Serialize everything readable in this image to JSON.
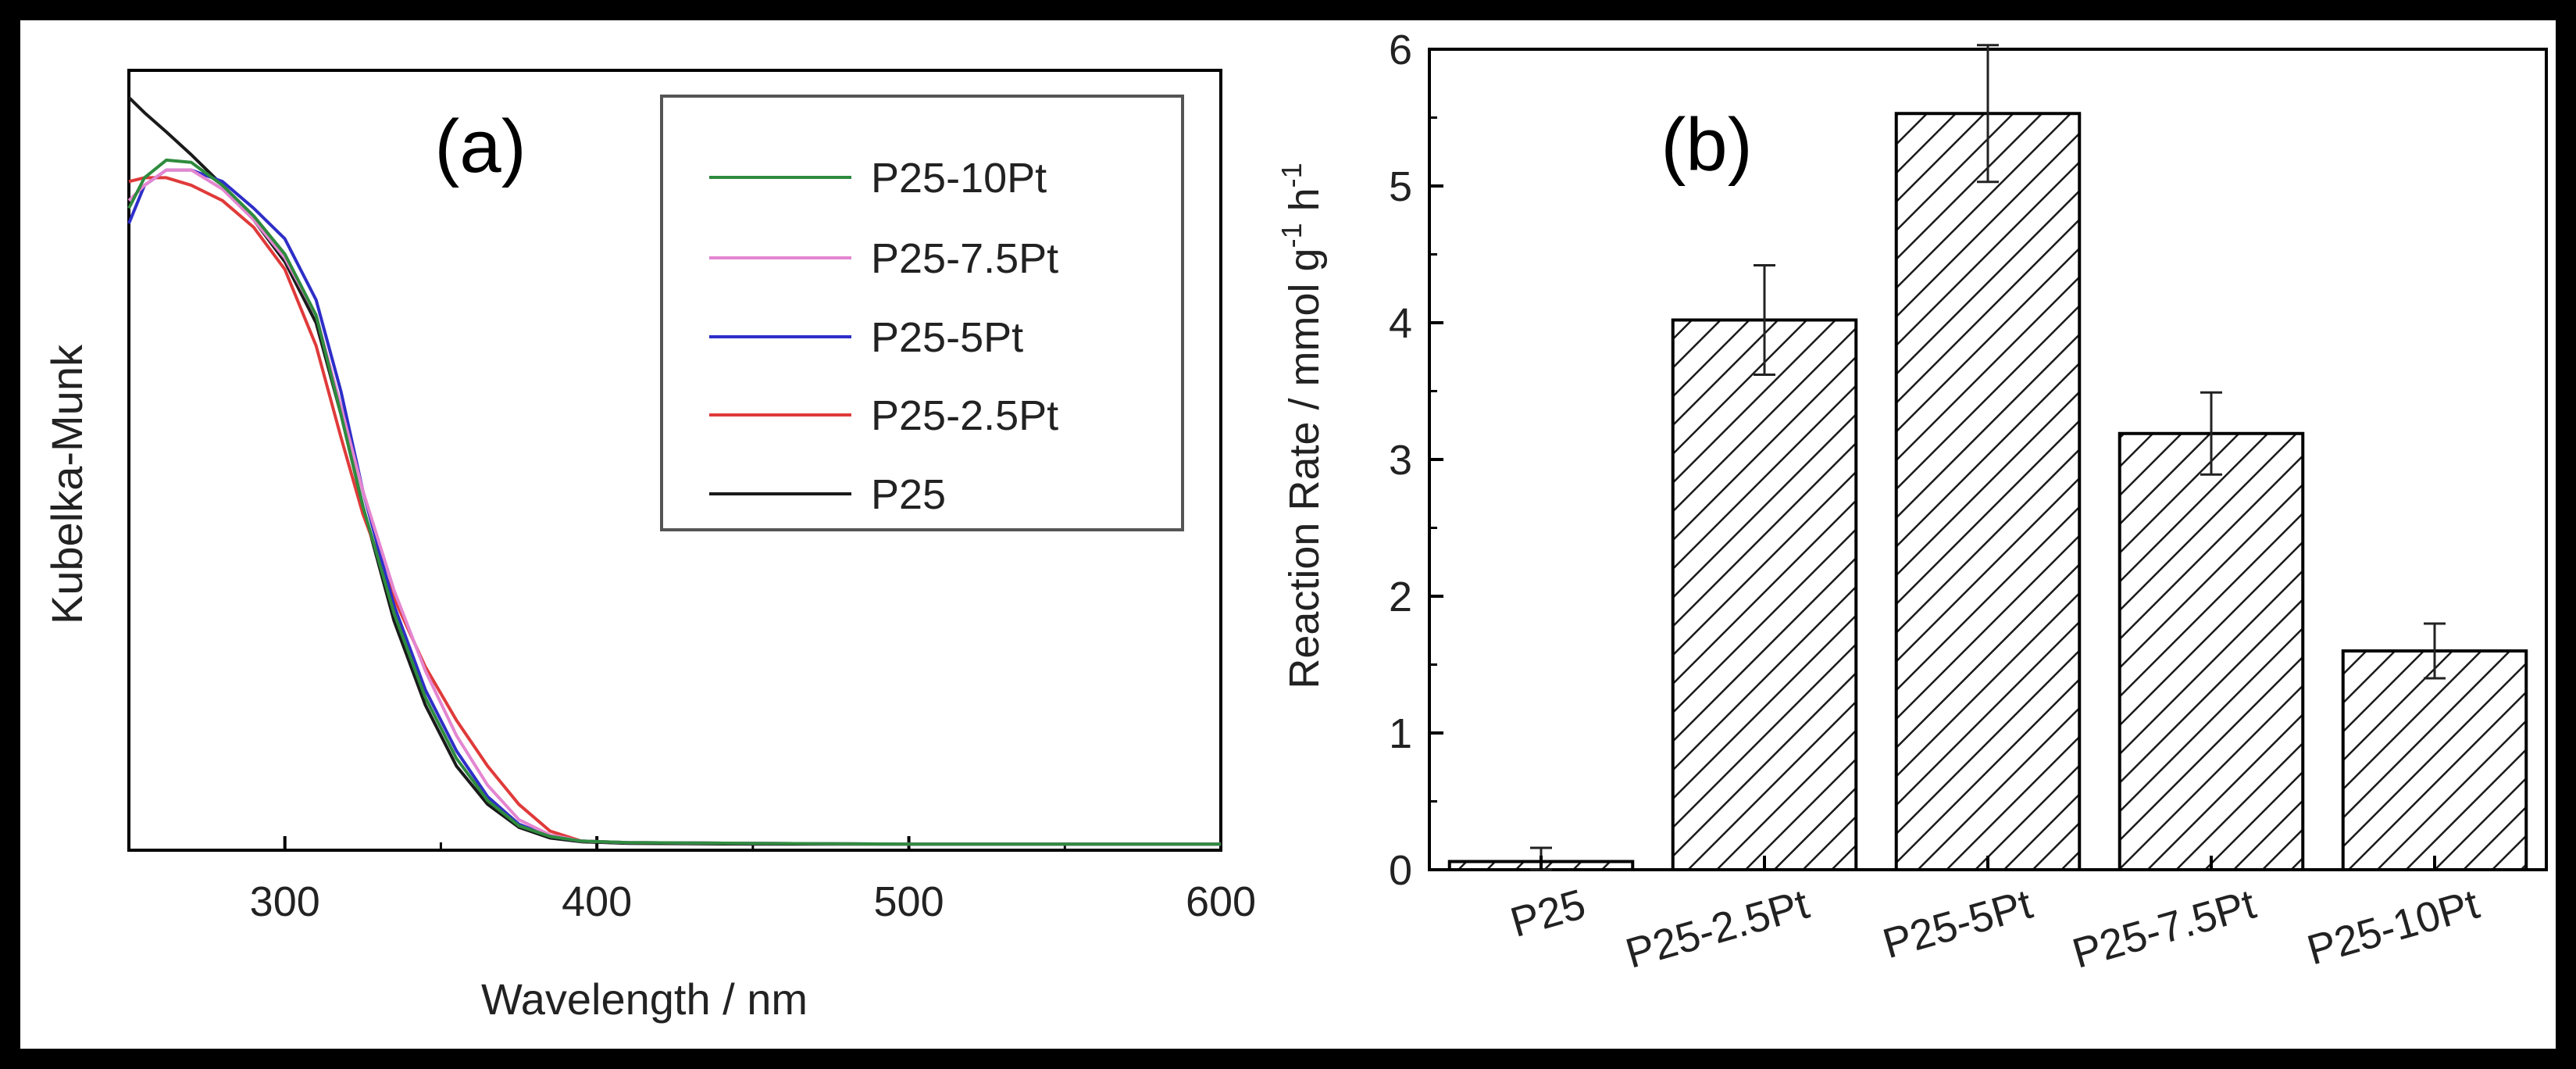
{
  "chart_data": [
    {
      "type": "line",
      "panel_label": "(a)",
      "title": "",
      "xlabel": "Wavelength / nm",
      "ylabel": "Kubelka-Munk",
      "xlim": [
        250,
        600
      ],
      "ylim": [
        0,
        1
      ],
      "xticks": [
        300,
        400,
        500,
        600
      ],
      "xtick_labels": [
        "300",
        "400",
        "500",
        "600"
      ],
      "yticks": [],
      "grid": false,
      "legend_position": "top-right",
      "legend": [
        "P25-10Pt",
        "P25-7.5Pt",
        "P25-5Pt",
        "P25-2.5Pt",
        "P25"
      ],
      "series": [
        {
          "name": "P25-10Pt",
          "color": "#2e8b3e",
          "x": [
            250,
            255,
            262,
            270,
            280,
            290,
            300,
            310,
            318,
            325,
            335,
            345,
            355,
            365,
            375,
            385,
            395,
            410,
            450,
            500,
            550,
            600
          ],
          "y": [
            0.84,
            0.88,
            0.903,
            0.9,
            0.87,
            0.83,
            0.78,
            0.7,
            0.57,
            0.45,
            0.31,
            0.2,
            0.12,
            0.065,
            0.032,
            0.018,
            0.012,
            0.01,
            0.009,
            0.008,
            0.008,
            0.008
          ]
        },
        {
          "name": "P25-7.5Pt",
          "color": "#e486d0",
          "x": [
            250,
            255,
            262,
            270,
            280,
            290,
            300,
            310,
            318,
            325,
            335,
            345,
            355,
            365,
            375,
            385,
            395,
            410,
            450,
            500,
            550,
            600
          ],
          "y": [
            0.85,
            0.87,
            0.89,
            0.89,
            0.865,
            0.825,
            0.775,
            0.7,
            0.58,
            0.47,
            0.34,
            0.235,
            0.15,
            0.085,
            0.04,
            0.02,
            0.012,
            0.01,
            0.009,
            0.008,
            0.008,
            0.008
          ]
        },
        {
          "name": "P25-5Pt",
          "color": "#2e2ec8",
          "x": [
            250,
            255,
            262,
            270,
            280,
            290,
            300,
            310,
            318,
            325,
            335,
            345,
            355,
            365,
            375,
            385,
            395,
            410,
            450,
            500,
            550,
            600
          ],
          "y": [
            0.82,
            0.87,
            0.89,
            0.89,
            0.875,
            0.84,
            0.8,
            0.72,
            0.6,
            0.47,
            0.32,
            0.21,
            0.13,
            0.07,
            0.034,
            0.018,
            0.012,
            0.01,
            0.009,
            0.008,
            0.008,
            0.008
          ]
        },
        {
          "name": "P25-2.5Pt",
          "color": "#e03a3a",
          "x": [
            250,
            255,
            262,
            270,
            280,
            290,
            300,
            310,
            318,
            325,
            335,
            345,
            355,
            365,
            375,
            385,
            395,
            410,
            450,
            500,
            550,
            600
          ],
          "y": [
            0.875,
            0.88,
            0.88,
            0.87,
            0.85,
            0.815,
            0.76,
            0.66,
            0.54,
            0.44,
            0.33,
            0.24,
            0.17,
            0.11,
            0.06,
            0.025,
            0.012,
            0.01,
            0.009,
            0.008,
            0.008,
            0.008
          ]
        },
        {
          "name": "P25",
          "color": "#1a1a1a",
          "x": [
            250,
            255,
            262,
            270,
            280,
            290,
            300,
            310,
            318,
            325,
            335,
            345,
            355,
            365,
            375,
            385,
            395,
            410,
            450,
            500,
            550,
            600
          ],
          "y": [
            0.985,
            0.965,
            0.94,
            0.91,
            0.87,
            0.825,
            0.77,
            0.69,
            0.57,
            0.45,
            0.3,
            0.19,
            0.11,
            0.06,
            0.03,
            0.016,
            0.011,
            0.009,
            0.008,
            0.008,
            0.008,
            0.008
          ]
        }
      ]
    },
    {
      "type": "bar",
      "panel_label": "(b)",
      "title": "",
      "xlabel": "",
      "ylabel": "Reaction Rate / mmol g",
      "ylabel_sup1": "-1",
      "ylabel_mid": " h",
      "ylabel_sup2": "-1",
      "ylim": [
        0,
        6
      ],
      "yticks": [
        0,
        1,
        2,
        3,
        4,
        5,
        6
      ],
      "ytick_labels": [
        "0",
        "1",
        "2",
        "3",
        "4",
        "5",
        "6"
      ],
      "grid": false,
      "categories": [
        "P25",
        "P25-2.5Pt",
        "P25-5Pt",
        "P25-7.5Pt",
        "P25-10Pt"
      ],
      "values": [
        0.06,
        4.02,
        5.53,
        3.19,
        1.6
      ],
      "errors": [
        0.1,
        0.4,
        0.5,
        0.3,
        0.2
      ],
      "bar_fill": "hatched",
      "bar_color": "#1a1a1a"
    }
  ]
}
